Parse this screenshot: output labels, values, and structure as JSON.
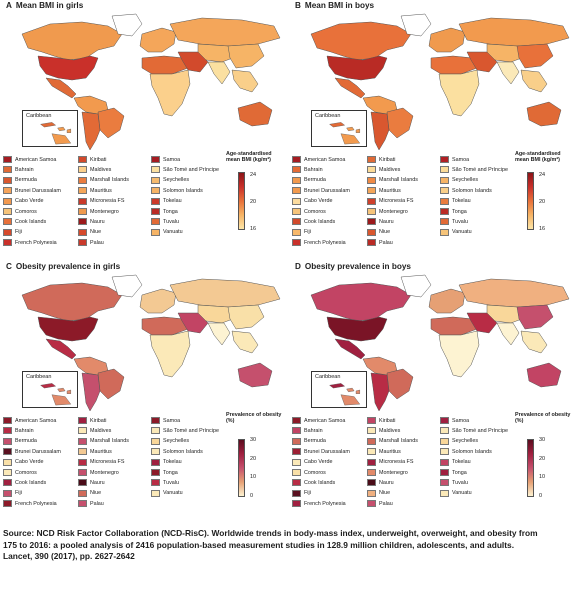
{
  "panels": [
    {
      "letter": "A",
      "title": "Mean BMI in girls",
      "scale": {
        "title": "Age-standardised mean BMI (kg/m²)",
        "ticks": [
          "24",
          "20",
          "16"
        ]
      }
    },
    {
      "letter": "B",
      "title": "Mean BMI in boys",
      "scale": {
        "title": "Age-standardised mean BMI (kg/m²)",
        "ticks": [
          "24",
          "20",
          "16"
        ]
      }
    },
    {
      "letter": "C",
      "title": "Obesity prevalence in girls",
      "scale": {
        "title": "Prevalence of obesity (%)",
        "ticks": [
          "30",
          "20",
          "10",
          "0"
        ]
      }
    },
    {
      "letter": "D",
      "title": "Obesity prevalence in boys",
      "scale": {
        "title": "Prevalence of obesity (%)",
        "ticks": [
          "30",
          "20",
          "10",
          "0"
        ]
      }
    }
  ],
  "inset_label": "Caribbean",
  "legend_countries": [
    [
      "American Samoa",
      "Bahrain",
      "Bermuda",
      "Brunei Darussalam",
      "Cabo Verde",
      "Comoros",
      "Cook Islands",
      "Fiji",
      "French Polynesia"
    ],
    [
      "Kiribati",
      "Maldives",
      "Marshall Islands",
      "Mauritius",
      "Micronesia FS",
      "Montenegro",
      "Nauru",
      "Niue",
      "Palau"
    ],
    [
      "Samoa",
      "São Tomé and Príncipe",
      "Seychelles",
      "Solomon Islands",
      "Tokelau",
      "Tonga",
      "Tuvalu",
      "Vanuatu"
    ]
  ],
  "swatches": {
    "A": [
      [
        "#a51c22",
        "#e06a36",
        "#d9572f",
        "#f6a45b",
        "#f2994f",
        "#f6c47a",
        "#e8713a",
        "#d64a2c",
        "#c9302a"
      ],
      [
        "#d24a2c",
        "#fbd08c",
        "#ea7c3f",
        "#f4a65a",
        "#c8392a",
        "#f09a4e",
        "#9c1a1c",
        "#d64a2c",
        "#c93a2b"
      ],
      [
        "#a51c22",
        "#fbe0a0",
        "#f6bb6e",
        "#f6b466",
        "#cc3a2a",
        "#b92b25",
        "#e26a36",
        "#f6b466"
      ]
    ],
    "B": [
      [
        "#a51c22",
        "#e46b36",
        "#f29a4e",
        "#f29a4e",
        "#fbdca0",
        "#f6c47a",
        "#d24a2c",
        "#f7b86a",
        "#c9302a"
      ],
      [
        "#e06a36",
        "#fbdb98",
        "#ef8a45",
        "#f4a65a",
        "#ce402b",
        "#f6c47a",
        "#9c1a1c",
        "#d9572f",
        "#b92b25"
      ],
      [
        "#b02024",
        "#fbdb98",
        "#f6b466",
        "#f9cf8a",
        "#ea7c3f",
        "#b92b25",
        "#e26a36",
        "#f6c47a"
      ]
    ],
    "C": [
      [
        "#8c1a28",
        "#b82c45",
        "#c5506d",
        "#5a1020",
        "#f9e0a8",
        "#fbe9b8",
        "#a02040",
        "#c5506d",
        "#8c1a28"
      ],
      [
        "#a02040",
        "#fbe9b8",
        "#c5506d",
        "#f3c993",
        "#b82c45",
        "#c5506d",
        "#4a0c18",
        "#d06a5a",
        "#c5506d"
      ],
      [
        "#8c1a28",
        "#fbe9b8",
        "#f9d79a",
        "#fbe9b8",
        "#a02040",
        "#8c1a28",
        "#b82c45",
        "#fbe9b8"
      ]
    ],
    "D": [
      [
        "#8c1a28",
        "#c24464",
        "#d06a5a",
        "#9c1f34",
        "#fbe9b8",
        "#f9e0a8",
        "#b82c45",
        "#5a1020",
        "#a02040"
      ],
      [
        "#c24464",
        "#fbe9b8",
        "#d06a5a",
        "#fbe9b8",
        "#a02040",
        "#e28a6a",
        "#4a0c18",
        "#f0b080",
        "#c5506d"
      ],
      [
        "#a02040",
        "#fbe9b8",
        "#f9d79a",
        "#fbe9b8",
        "#c24464",
        "#a02040",
        "#c5506d",
        "#fbe9b8"
      ]
    ]
  },
  "source_lines": [
    "Source: NCD Risk Factor Collaboration (NCD-RisC). Worldwide trends in body-mass index, underweight, overweight, and obesity from",
    "175 to 2016: a pooled analysis of 2416 population-based measurement studies in 128.9 million children, adolescents, and adults.",
    "Lancet, 390 (2017), pp. 2627-2642"
  ],
  "map_fill": {
    "A": {
      "na_us": "#c9302a",
      "na_ca": "#f09a4e",
      "na_mx": "#e06a36",
      "greenland": "#ffffff",
      "sa_north": "#f29a4e",
      "sa_south": "#e26a36",
      "brazil": "#ea7c3f",
      "europe": "#f4a65a",
      "africa_north": "#e26a36",
      "africa_sub": "#fbd08c",
      "middle_east": "#d24a2c",
      "russia": "#f4a65a",
      "asia_central": "#f6b466",
      "south_asia": "#fbe0a0",
      "east_asia": "#f6b466",
      "se_asia": "#f9cf8a",
      "oceania": "#e06a36"
    },
    "B": {
      "na_us": "#b92b25",
      "na_ca": "#e8713a",
      "na_mx": "#e26a36",
      "greenland": "#ffffff",
      "sa_north": "#f29a4e",
      "sa_south": "#d9572f",
      "brazil": "#ea7c3f",
      "europe": "#f09a4e",
      "africa_north": "#e8713a",
      "africa_sub": "#fbe0a0",
      "middle_east": "#d9572f",
      "russia": "#f29a4e",
      "asia_central": "#f6b466",
      "south_asia": "#fbe9b8",
      "east_asia": "#e8713a",
      "se_asia": "#f9cf8a",
      "oceania": "#e06a36"
    },
    "C": {
      "na_us": "#8c1a28",
      "na_ca": "#d06a5a",
      "na_mx": "#b82c45",
      "greenland": "#ffffff",
      "sa_north": "#e28a6a",
      "sa_south": "#c5506d",
      "brazil": "#d06a5a",
      "europe": "#f3c993",
      "africa_north": "#d06a5a",
      "africa_sub": "#fbe9b8",
      "middle_east": "#c24464",
      "russia": "#f3c993",
      "asia_central": "#f9d79a",
      "south_asia": "#fdf3d2",
      "east_asia": "#f9e0a8",
      "se_asia": "#fbe9b8",
      "oceania": "#c5506d"
    },
    "D": {
      "na_us": "#7a1426",
      "na_ca": "#c24464",
      "na_mx": "#a02040",
      "greenland": "#ffffff",
      "sa_north": "#e28a6a",
      "sa_south": "#b82c45",
      "brazil": "#d06a5a",
      "europe": "#e6a074",
      "africa_north": "#d06a5a",
      "africa_sub": "#fdf3d2",
      "middle_east": "#b82c45",
      "russia": "#f0b080",
      "asia_central": "#f9d79a",
      "south_asia": "#fdf3d2",
      "east_asia": "#c5506d",
      "se_asia": "#fbe9b8",
      "oceania": "#c24464"
    }
  }
}
